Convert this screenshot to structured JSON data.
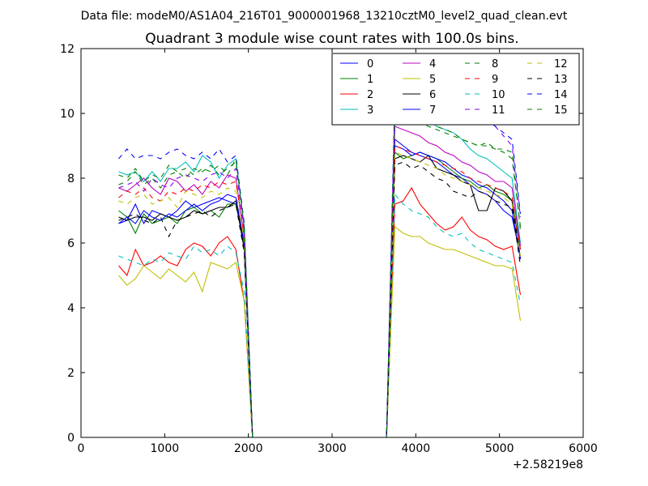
{
  "suptitle": "Data file: modeM0/AS1A04_216T01_9000001968_13210cztM0_level2_quad_clean.evt",
  "chart_data": {
    "type": "line",
    "title": "Quadrant 3 module wise count rates with 100.0s bins.",
    "xlabel": "",
    "ylabel": "",
    "x_offset_label": "+2.58219e8",
    "xlim": [
      0,
      6000
    ],
    "ylim": [
      0,
      12
    ],
    "xticks": [
      0,
      1000,
      2000,
      3000,
      4000,
      5000,
      6000
    ],
    "yticks": [
      0,
      2,
      4,
      6,
      8,
      10,
      12
    ],
    "grid": false,
    "legend": {
      "placement": "top-right",
      "ncol": 4
    },
    "x": [
      450,
      550,
      650,
      750,
      850,
      950,
      1050,
      1150,
      1250,
      1350,
      1450,
      1550,
      1650,
      1750,
      1850,
      1950,
      2050,
      2150,
      2250,
      2350,
      2450,
      2550,
      2650,
      2750,
      2850,
      2950,
      3050,
      3150,
      3250,
      3350,
      3450,
      3550,
      3650,
      3750,
      3850,
      3950,
      4050,
      4150,
      4250,
      4350,
      4450,
      4550,
      4650,
      4750,
      4850,
      4950,
      5050,
      5150,
      5250
    ],
    "series": [
      {
        "name": "0",
        "color": "#0000ff",
        "dash": "solid",
        "values": [
          6.6,
          6.7,
          7.2,
          6.6,
          7.0,
          6.9,
          6.8,
          7.0,
          7.3,
          7.1,
          7.2,
          7.3,
          7.4,
          7.3,
          7.2,
          6.0,
          0,
          0,
          0,
          0,
          0,
          0,
          0,
          0,
          0,
          0,
          0,
          0,
          0,
          0,
          0,
          0,
          0,
          9.2,
          9.0,
          8.8,
          8.7,
          8.6,
          8.5,
          8.3,
          8.1,
          8.0,
          7.8,
          7.6,
          7.5,
          7.3,
          7.0,
          6.8,
          5.6
        ]
      },
      {
        "name": "1",
        "color": "#008000",
        "dash": "solid",
        "values": [
          7.0,
          6.8,
          6.3,
          6.9,
          6.6,
          6.7,
          6.8,
          6.6,
          7.0,
          7.1,
          6.9,
          7.0,
          6.8,
          7.2,
          7.2,
          6.0,
          0,
          0,
          0,
          0,
          0,
          0,
          0,
          0,
          0,
          0,
          0,
          0,
          0,
          0,
          0,
          0,
          0,
          8.8,
          8.6,
          8.7,
          8.8,
          8.7,
          8.6,
          8.4,
          8.2,
          8.0,
          7.9,
          7.7,
          7.8,
          7.6,
          7.5,
          7.3,
          5.8
        ]
      },
      {
        "name": "2",
        "color": "#ff0000",
        "dash": "solid",
        "values": [
          5.3,
          5.0,
          5.8,
          5.3,
          5.4,
          5.6,
          5.4,
          5.3,
          5.8,
          6.0,
          5.9,
          5.6,
          6.0,
          6.2,
          5.8,
          4.2,
          0,
          0,
          0,
          0,
          0,
          0,
          0,
          0,
          0,
          0,
          0,
          0,
          0,
          0,
          0,
          0,
          0,
          7.2,
          7.3,
          7.7,
          7.2,
          6.9,
          6.6,
          6.4,
          6.5,
          6.8,
          6.4,
          6.2,
          6.1,
          5.9,
          5.8,
          5.9,
          4.4
        ]
      },
      {
        "name": "3",
        "color": "#00bfbf",
        "dash": "solid",
        "values": [
          8.2,
          8.1,
          8.2,
          7.9,
          8.2,
          7.9,
          8.3,
          8.3,
          8.5,
          8.2,
          8.7,
          8.5,
          8.0,
          8.4,
          8.6,
          6.5,
          0,
          0,
          0,
          0,
          0,
          0,
          0,
          0,
          0,
          0,
          0,
          0,
          0,
          0,
          0,
          0,
          0,
          10.0,
          10.2,
          10.4,
          10.0,
          9.8,
          9.6,
          9.5,
          9.4,
          9.2,
          8.9,
          8.7,
          8.6,
          8.4,
          8.2,
          8.0,
          6.0
        ]
      },
      {
        "name": "4",
        "color": "#bf00bf",
        "dash": "solid",
        "values": [
          7.7,
          7.6,
          7.8,
          8.0,
          7.7,
          7.5,
          8.0,
          7.9,
          7.6,
          7.8,
          7.5,
          7.9,
          7.7,
          8.1,
          8.0,
          6.2,
          0,
          0,
          0,
          0,
          0,
          0,
          0,
          0,
          0,
          0,
          0,
          0,
          0,
          0,
          0,
          0,
          0,
          9.6,
          9.5,
          9.4,
          9.3,
          9.1,
          9.0,
          8.8,
          8.7,
          8.5,
          8.4,
          8.2,
          8.1,
          7.9,
          7.9,
          7.7,
          5.9
        ]
      },
      {
        "name": "5",
        "color": "#bfbf00",
        "dash": "solid",
        "values": [
          5.0,
          4.7,
          4.9,
          5.3,
          5.1,
          4.9,
          5.2,
          5.0,
          4.8,
          5.1,
          4.5,
          5.4,
          5.3,
          5.2,
          5.4,
          4.2,
          0,
          0,
          0,
          0,
          0,
          0,
          0,
          0,
          0,
          0,
          0,
          0,
          0,
          0,
          0,
          0,
          0,
          6.5,
          6.3,
          6.2,
          6.2,
          6.0,
          5.9,
          5.8,
          5.8,
          5.7,
          5.6,
          5.5,
          5.4,
          5.3,
          5.3,
          5.2,
          3.6
        ]
      },
      {
        "name": "6",
        "color": "#000000",
        "dash": "solid",
        "values": [
          6.8,
          6.7,
          6.8,
          6.8,
          6.7,
          6.9,
          6.8,
          6.7,
          6.8,
          7.0,
          6.9,
          7.0,
          7.1,
          7.1,
          7.3,
          5.8,
          0,
          0,
          0,
          0,
          0,
          0,
          0,
          0,
          0,
          0,
          0,
          0,
          0,
          0,
          0,
          0,
          0,
          8.6,
          8.7,
          8.6,
          8.5,
          8.7,
          8.3,
          8.2,
          8.1,
          7.9,
          7.8,
          7.0,
          7.0,
          7.7,
          7.6,
          7.3,
          5.5
        ]
      },
      {
        "name": "7",
        "color": "#0000ff",
        "dash": "solid",
        "values": [
          6.6,
          6.8,
          6.6,
          7.0,
          6.8,
          6.7,
          6.9,
          6.8,
          7.0,
          7.2,
          7.0,
          7.2,
          7.3,
          7.5,
          7.4,
          6.0,
          0,
          0,
          0,
          0,
          0,
          0,
          0,
          0,
          0,
          0,
          0,
          0,
          0,
          0,
          0,
          0,
          0,
          9.0,
          8.9,
          8.7,
          8.8,
          8.7,
          8.6,
          8.5,
          8.3,
          8.1,
          8.0,
          7.8,
          7.7,
          7.5,
          7.3,
          7.0,
          5.5
        ]
      },
      {
        "name": "8",
        "color": "#008000",
        "dash": "dashed",
        "values": [
          7.8,
          7.9,
          8.2,
          7.8,
          8.0,
          7.7,
          8.1,
          8.2,
          8.0,
          8.3,
          8.2,
          8.4,
          8.1,
          8.3,
          8.5,
          6.5,
          0,
          0,
          0,
          0,
          0,
          0,
          0,
          0,
          0,
          0,
          0,
          0,
          0,
          0,
          0,
          0,
          0,
          10.0,
          9.8,
          9.9,
          9.7,
          9.6,
          9.5,
          9.4,
          9.3,
          9.2,
          9.1,
          9.0,
          9.1,
          8.9,
          8.9,
          8.8,
          6.4
        ]
      },
      {
        "name": "9",
        "color": "#ff0000",
        "dash": "dashed",
        "values": [
          7.4,
          7.6,
          7.5,
          7.7,
          7.4,
          7.3,
          7.6,
          7.5,
          7.7,
          7.6,
          7.8,
          7.7,
          7.9,
          7.8,
          7.9,
          6.2,
          0,
          0,
          0,
          0,
          0,
          0,
          0,
          0,
          0,
          0,
          0,
          0,
          0,
          0,
          0,
          0,
          0,
          9.0,
          8.9,
          8.8,
          8.7,
          8.6,
          8.5,
          8.4,
          8.3,
          8.2,
          8.0,
          7.9,
          7.8,
          7.7,
          7.6,
          7.4,
          5.8
        ]
      },
      {
        "name": "10",
        "color": "#00bfbf",
        "dash": "dashed",
        "values": [
          5.6,
          5.5,
          5.4,
          5.3,
          5.5,
          5.4,
          5.7,
          5.6,
          5.5,
          5.9,
          5.7,
          5.8,
          5.6,
          5.9,
          5.7,
          4.5,
          0,
          0,
          0,
          0,
          0,
          0,
          0,
          0,
          0,
          0,
          0,
          0,
          0,
          0,
          0,
          0,
          0,
          7.5,
          7.2,
          7.0,
          6.9,
          6.8,
          6.5,
          6.3,
          6.2,
          6.3,
          6.0,
          5.8,
          5.7,
          5.6,
          5.5,
          5.4,
          4.1
        ]
      },
      {
        "name": "11",
        "color": "#8000ff",
        "dash": "dashed",
        "values": [
          7.7,
          7.8,
          7.9,
          7.6,
          8.0,
          7.8,
          7.7,
          8.0,
          8.1,
          8.0,
          7.9,
          8.1,
          8.2,
          8.0,
          8.3,
          6.4,
          0,
          0,
          0,
          0,
          0,
          0,
          0,
          0,
          0,
          0,
          0,
          0,
          0,
          0,
          0,
          0,
          0,
          10.4,
          11.0,
          10.7,
          10.6,
          10.5,
          10.6,
          10.4,
          10.2,
          10.0,
          9.9,
          9.7,
          9.8,
          9.6,
          9.3,
          9.0,
          6.8
        ]
      },
      {
        "name": "12",
        "color": "#bfbf00",
        "dash": "dashed",
        "values": [
          7.3,
          7.2,
          7.4,
          7.5,
          7.2,
          7.3,
          7.4,
          7.1,
          7.6,
          7.5,
          7.4,
          7.6,
          7.5,
          7.7,
          7.6,
          6.1,
          0,
          0,
          0,
          0,
          0,
          0,
          0,
          0,
          0,
          0,
          0,
          0,
          0,
          0,
          0,
          0,
          0,
          8.8,
          8.7,
          8.6,
          8.5,
          8.4,
          8.3,
          8.1,
          8.0,
          7.9,
          7.8,
          7.7,
          7.6,
          7.5,
          7.4,
          7.2,
          5.6
        ]
      },
      {
        "name": "13",
        "color": "#000000",
        "dash": "dashed",
        "values": [
          6.7,
          6.8,
          6.9,
          6.7,
          6.6,
          6.8,
          6.2,
          6.7,
          6.8,
          6.9,
          7.0,
          6.8,
          7.0,
          7.1,
          7.2,
          5.7,
          0,
          0,
          0,
          0,
          0,
          0,
          0,
          0,
          0,
          0,
          0,
          0,
          0,
          0,
          0,
          0,
          0,
          8.4,
          8.5,
          8.3,
          8.4,
          8.2,
          8.0,
          7.9,
          7.6,
          7.5,
          7.4,
          7.6,
          7.5,
          7.3,
          7.2,
          7.1,
          5.3
        ]
      },
      {
        "name": "14",
        "color": "#0000ff",
        "dash": "dashed",
        "values": [
          8.6,
          8.9,
          8.6,
          8.7,
          8.7,
          8.6,
          8.8,
          8.9,
          8.7,
          8.6,
          8.8,
          8.6,
          8.9,
          8.5,
          8.7,
          6.6,
          0,
          0,
          0,
          0,
          0,
          0,
          0,
          0,
          0,
          0,
          0,
          0,
          0,
          0,
          0,
          0,
          0,
          10.6,
          11.1,
          10.7,
          10.8,
          10.6,
          10.7,
          10.4,
          10.3,
          10.2,
          10.0,
          9.9,
          9.8,
          9.6,
          9.4,
          9.2,
          6.9
        ]
      },
      {
        "name": "15",
        "color": "#008000",
        "dash": "dashed",
        "values": [
          8.1,
          8.0,
          8.3,
          7.9,
          8.1,
          8.0,
          8.4,
          8.2,
          8.3,
          8.1,
          8.3,
          8.2,
          8.4,
          8.1,
          8.6,
          6.5,
          0,
          0,
          0,
          0,
          0,
          0,
          0,
          0,
          0,
          0,
          0,
          0,
          0,
          0,
          0,
          0,
          0,
          10.2,
          10.0,
          9.9,
          10.1,
          9.8,
          9.6,
          9.5,
          9.4,
          9.2,
          9.1,
          9.0,
          9.0,
          8.9,
          8.8,
          8.6,
          6.5
        ]
      }
    ]
  }
}
